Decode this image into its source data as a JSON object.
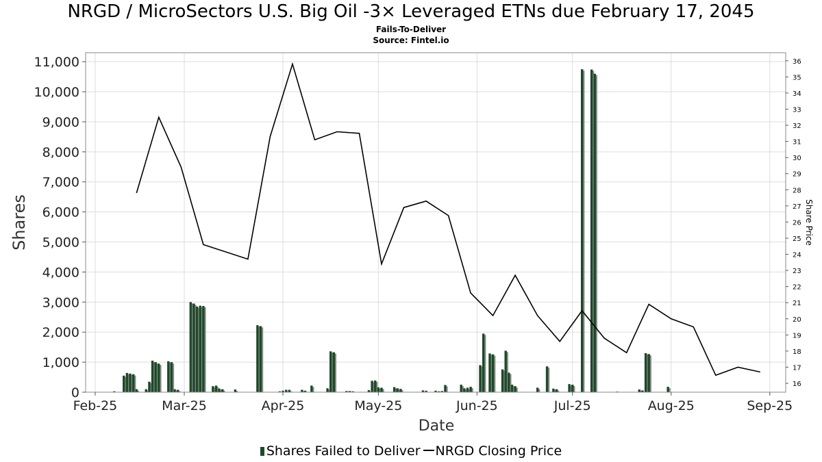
{
  "chart_data": {
    "type": "bar",
    "title": "NRGD / MicroSectors U.S. Big Oil -3× Leveraged ETNs due February 17, 2045",
    "subtitles": [
      "Fails-To-Deliver",
      "Source: Fintel.io"
    ],
    "xlabel": "Date",
    "ylabel": "Shares",
    "y2label": "Share Price",
    "x_ticks": [
      "Feb-25",
      "Mar-25",
      "Apr-25",
      "May-25",
      "Jun-25",
      "Jul-25",
      "Aug-25",
      "Sep-25"
    ],
    "x_tick_dates": [
      "2025-02-01",
      "2025-03-01",
      "2025-04-01",
      "2025-05-01",
      "2025-06-01",
      "2025-07-01",
      "2025-08-01",
      "2025-09-01"
    ],
    "x_range": [
      "2025-01-29",
      "2025-09-06"
    ],
    "y_ticks": [
      "0",
      "1,000",
      "2,000",
      "3,000",
      "4,000",
      "5,000",
      "6,000",
      "7,000",
      "8,000",
      "9,000",
      "10,000",
      "11,000"
    ],
    "ylim": [
      0,
      11300
    ],
    "y2_ticks": [
      "16",
      "17",
      "18",
      "19",
      "20",
      "21",
      "22",
      "23",
      "24",
      "25",
      "26",
      "27",
      "28",
      "29",
      "30",
      "31",
      "32",
      "33",
      "34",
      "35",
      "36"
    ],
    "y2lim": [
      15.45,
      36.5
    ],
    "grid": true,
    "legend_position": "bottom",
    "colors": {
      "bar": "#1d4a28",
      "bar_shadow": "#8a8a8a",
      "line": "#000000",
      "grid": "#dddddd"
    },
    "series": [
      {
        "name": "Shares Failed to Deliver",
        "type": "bar",
        "x": [
          "2025-02-07",
          "2025-02-10",
          "2025-02-11",
          "2025-02-12",
          "2025-02-13",
          "2025-02-14",
          "2025-02-17",
          "2025-02-18",
          "2025-02-19",
          "2025-02-20",
          "2025-02-21",
          "2025-02-24",
          "2025-02-25",
          "2025-02-26",
          "2025-02-27",
          "2025-03-03",
          "2025-03-04",
          "2025-03-05",
          "2025-03-06",
          "2025-03-07",
          "2025-03-10",
          "2025-03-11",
          "2025-03-12",
          "2025-03-13",
          "2025-03-17",
          "2025-03-24",
          "2025-03-25",
          "2025-03-31",
          "2025-04-01",
          "2025-04-02",
          "2025-04-03",
          "2025-04-07",
          "2025-04-08",
          "2025-04-10",
          "2025-04-15",
          "2025-04-16",
          "2025-04-17",
          "2025-04-21",
          "2025-04-22",
          "2025-04-23",
          "2025-04-28",
          "2025-04-29",
          "2025-04-30",
          "2025-05-01",
          "2025-05-02",
          "2025-05-06",
          "2025-05-07",
          "2025-05-08",
          "2025-05-15",
          "2025-05-16",
          "2025-05-19",
          "2025-05-20",
          "2025-05-21",
          "2025-05-22",
          "2025-05-27",
          "2025-05-28",
          "2025-05-29",
          "2025-05-30",
          "2025-06-02",
          "2025-06-03",
          "2025-06-05",
          "2025-06-06",
          "2025-06-09",
          "2025-06-10",
          "2025-06-11",
          "2025-06-12",
          "2025-06-13",
          "2025-06-20",
          "2025-06-23",
          "2025-06-25",
          "2025-06-26",
          "2025-06-30",
          "2025-07-01",
          "2025-07-04",
          "2025-07-07",
          "2025-07-08",
          "2025-07-09",
          "2025-07-15",
          "2025-07-22",
          "2025-07-23",
          "2025-07-24",
          "2025-07-25",
          "2025-07-31"
        ],
        "values": [
          30,
          550,
          640,
          620,
          600,
          100,
          100,
          350,
          1050,
          1000,
          950,
          1030,
          1000,
          100,
          80,
          3000,
          2950,
          2850,
          2880,
          2870,
          200,
          220,
          120,
          100,
          90,
          2230,
          2200,
          30,
          50,
          80,
          80,
          80,
          50,
          220,
          130,
          1360,
          1330,
          40,
          40,
          30,
          70,
          380,
          390,
          160,
          150,
          170,
          130,
          110,
          60,
          50,
          50,
          30,
          40,
          240,
          250,
          130,
          150,
          180,
          900,
          1950,
          1290,
          1260,
          760,
          1380,
          650,
          250,
          200,
          150,
          860,
          120,
          100,
          270,
          250,
          10750,
          10740,
          10600,
          0,
          20,
          90,
          60,
          1300,
          1270,
          180
        ],
        "units": "Shares"
      },
      {
        "name": "NRGD Closing Price",
        "type": "line",
        "x": [
          "2025-02-14",
          "2025-02-21",
          "2025-02-28",
          "2025-03-07",
          "2025-03-21",
          "2025-03-28",
          "2025-04-04",
          "2025-04-11",
          "2025-04-18",
          "2025-04-25",
          "2025-05-02",
          "2025-05-09",
          "2025-05-16",
          "2025-05-23",
          "2025-05-30",
          "2025-06-06",
          "2025-06-13",
          "2025-06-20",
          "2025-06-27",
          "2025-07-04",
          "2025-07-11",
          "2025-07-18",
          "2025-07-25",
          "2025-08-01",
          "2025-08-08",
          "2025-08-15",
          "2025-08-22",
          "2025-08-29"
        ],
        "values": [
          27.8,
          32.5,
          29.4,
          24.6,
          23.7,
          31.3,
          35.8,
          31.1,
          31.6,
          31.5,
          23.4,
          26.9,
          27.3,
          26.4,
          21.6,
          20.2,
          22.7,
          20.2,
          18.6,
          20.5,
          18.8,
          17.9,
          20.9,
          20.0,
          19.5,
          16.5,
          17.0,
          16.7
        ],
        "units": "Share Price"
      }
    ]
  }
}
